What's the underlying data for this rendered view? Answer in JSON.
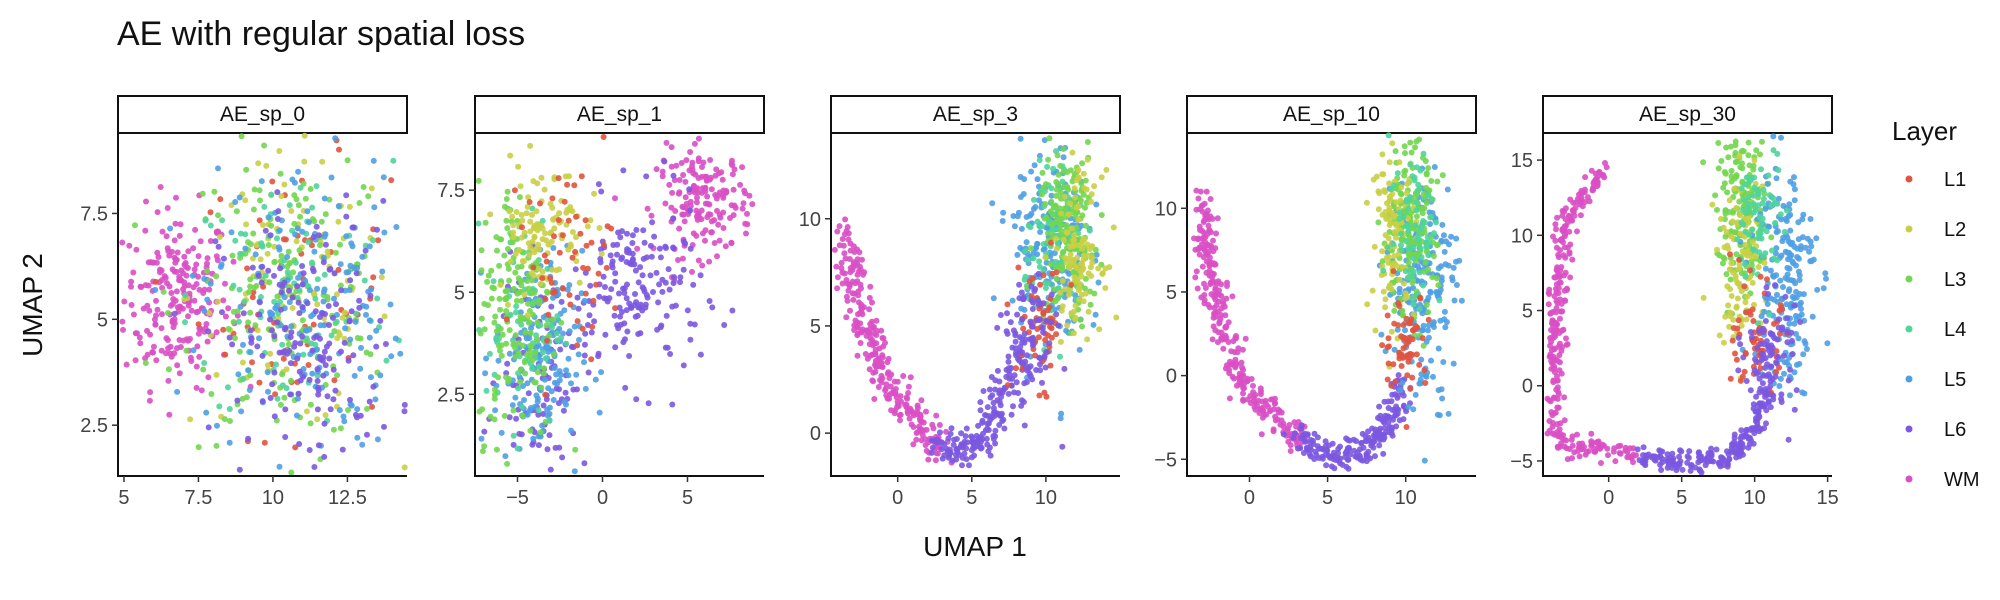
{
  "chart_data": {
    "type": "scatter",
    "title": "AE with regular spatial loss",
    "xlabel": "UMAP 1",
    "ylabel": "UMAP 2",
    "legend": {
      "title": "Layer",
      "placement": "right",
      "entries": [
        {
          "label": "L1",
          "color": "#e0533e"
        },
        {
          "label": "L2",
          "color": "#c9cf45"
        },
        {
          "label": "L3",
          "color": "#72d64f"
        },
        {
          "label": "L4",
          "color": "#4fd49a"
        },
        {
          "label": "L5",
          "color": "#4f9fe3"
        },
        {
          "label": "L6",
          "color": "#7b58e0"
        },
        {
          "label": "WM",
          "color": "#d94fc4"
        }
      ]
    },
    "panels": [
      {
        "label": "AE_sp_0",
        "xlim": [
          4.8,
          14.5
        ],
        "ylim": [
          1.3,
          9.4
        ],
        "xticks": [
          {
            "v": 5,
            "t": "5"
          },
          {
            "v": 7.5,
            "t": "7.5"
          },
          {
            "v": 10,
            "t": "10"
          },
          {
            "v": 12.5,
            "t": "12.5"
          }
        ],
        "yticks": [
          {
            "v": 2.5,
            "t": "2.5"
          },
          {
            "v": 5,
            "t": "5"
          },
          {
            "v": 7.5,
            "t": "7.5"
          }
        ],
        "clusters": [
          {
            "layer": "WM",
            "n": 220,
            "cx": 6.8,
            "cy": 5.5,
            "sx": 0.9,
            "sy": 1.05
          },
          {
            "layer": "L1",
            "n": 70,
            "cx": 10.7,
            "cy": 5.5,
            "sx": 1.6,
            "sy": 1.6
          },
          {
            "layer": "L2",
            "n": 110,
            "cx": 10.6,
            "cy": 5.6,
            "sx": 1.7,
            "sy": 1.6
          },
          {
            "layer": "L3",
            "n": 170,
            "cx": 10.5,
            "cy": 5.5,
            "sx": 1.8,
            "sy": 1.7
          },
          {
            "layer": "L4",
            "n": 100,
            "cx": 10.6,
            "cy": 5.5,
            "sx": 1.7,
            "sy": 1.6
          },
          {
            "layer": "L5",
            "n": 170,
            "cx": 11.0,
            "cy": 5.3,
            "sx": 1.7,
            "sy": 1.7
          },
          {
            "layer": "L6",
            "n": 170,
            "cx": 11.2,
            "cy": 4.5,
            "sx": 1.5,
            "sy": 1.6
          }
        ]
      },
      {
        "label": "AE_sp_1",
        "xlim": [
          -7.5,
          9.5
        ],
        "ylim": [
          0.5,
          8.9
        ],
        "xticks": [
          {
            "v": -5,
            "t": "−5"
          },
          {
            "v": 0,
            "t": "0"
          },
          {
            "v": 5,
            "t": "5"
          }
        ],
        "yticks": [
          {
            "v": 2.5,
            "t": "2.5"
          },
          {
            "v": 5,
            "t": "5"
          },
          {
            "v": 7.5,
            "t": "7.5"
          }
        ],
        "clusters": [
          {
            "layer": "WM",
            "n": 170,
            "cx": 6.0,
            "cy": 7.2,
            "sx": 1.4,
            "sy": 0.65
          },
          {
            "layer": "L6",
            "n": 170,
            "cx": 2.0,
            "cy": 5.0,
            "sx": 1.9,
            "sy": 1.1
          },
          {
            "layer": "L6",
            "n": 100,
            "cx": -3.5,
            "cy": 3.0,
            "sx": 1.3,
            "sy": 1.2
          },
          {
            "layer": "L5",
            "n": 160,
            "cx": -3.8,
            "cy": 3.4,
            "sx": 1.3,
            "sy": 1.3
          },
          {
            "layer": "L4",
            "n": 70,
            "cx": -4.6,
            "cy": 4.3,
            "sx": 1.1,
            "sy": 1.3
          },
          {
            "layer": "L3",
            "n": 170,
            "cx": -5.0,
            "cy": 4.6,
            "sx": 1.2,
            "sy": 1.6
          },
          {
            "layer": "L2",
            "n": 110,
            "cx": -3.6,
            "cy": 6.6,
            "sx": 1.3,
            "sy": 0.8
          },
          {
            "layer": "L1",
            "n": 55,
            "cx": -2.0,
            "cy": 5.8,
            "sx": 1.3,
            "sy": 1.1
          }
        ]
      },
      {
        "label": "AE_sp_3",
        "xlim": [
          -4.5,
          15.0
        ],
        "ylim": [
          -2.0,
          14.0
        ],
        "xticks": [
          {
            "v": 0,
            "t": "0"
          },
          {
            "v": 5,
            "t": "5"
          },
          {
            "v": 10,
            "t": "10"
          }
        ],
        "yticks": [
          {
            "v": 0,
            "t": "0"
          },
          {
            "v": 5,
            "t": "5"
          },
          {
            "v": 10,
            "t": "10"
          }
        ],
        "paths": [
          {
            "layer": "WM",
            "n": 260,
            "spread": 0.45,
            "pts": [
              [
                -3.5,
                9
              ],
              [
                -2.8,
                6.5
              ],
              [
                -1.5,
                3.5
              ],
              [
                0,
                1.5
              ],
              [
                1.5,
                0.2
              ],
              [
                3,
                -0.7
              ]
            ]
          },
          {
            "layer": "L6",
            "n": 160,
            "spread": 0.45,
            "pts": [
              [
                2.5,
                -0.6
              ],
              [
                4,
                -0.9
              ],
              [
                5.5,
                -0.4
              ],
              [
                7,
                1.5
              ],
              [
                8,
                3.5
              ]
            ]
          }
        ],
        "clusters": [
          {
            "layer": "L5",
            "n": 200,
            "cx": 10.2,
            "cy": 8.5,
            "sx": 1.3,
            "sy": 2.5
          },
          {
            "layer": "L4",
            "n": 90,
            "cx": 10.6,
            "cy": 9.0,
            "sx": 1.0,
            "sy": 2.0
          },
          {
            "layer": "L3",
            "n": 160,
            "cx": 11.5,
            "cy": 9.3,
            "sx": 1.0,
            "sy": 2.2
          },
          {
            "layer": "L2",
            "n": 110,
            "cx": 12.2,
            "cy": 8.5,
            "sx": 0.8,
            "sy": 1.8
          },
          {
            "layer": "L1",
            "n": 60,
            "cx": 9.6,
            "cy": 5.0,
            "sx": 0.9,
            "sy": 1.4
          },
          {
            "layer": "L6",
            "n": 90,
            "cx": 8.8,
            "cy": 4.2,
            "sx": 0.9,
            "sy": 1.6
          }
        ]
      },
      {
        "label": "AE_sp_10",
        "xlim": [
          -4.0,
          14.5
        ],
        "ylim": [
          -6.0,
          14.5
        ],
        "xticks": [
          {
            "v": 0,
            "t": "0"
          },
          {
            "v": 5,
            "t": "5"
          },
          {
            "v": 10,
            "t": "10"
          }
        ],
        "yticks": [
          {
            "v": -5,
            "t": "−5"
          },
          {
            "v": 0,
            "t": "0"
          },
          {
            "v": 5,
            "t": "5"
          },
          {
            "v": 10,
            "t": "10"
          }
        ],
        "paths": [
          {
            "layer": "WM",
            "n": 280,
            "spread": 0.4,
            "pts": [
              [
                -3,
                11
              ],
              [
                -2.7,
                6
              ],
              [
                -1.5,
                2
              ],
              [
                -0.5,
                -0.5
              ],
              [
                1.5,
                -2.5
              ],
              [
                3.5,
                -4
              ]
            ]
          },
          {
            "layer": "L6",
            "n": 200,
            "spread": 0.4,
            "pts": [
              [
                3,
                -3.8
              ],
              [
                5.5,
                -4.8
              ],
              [
                7.5,
                -4.5
              ],
              [
                9,
                -3
              ],
              [
                9.8,
                0
              ]
            ]
          }
        ],
        "clusters": [
          {
            "layer": "L5",
            "n": 210,
            "cx": 11.0,
            "cy": 5.5,
            "sx": 1.1,
            "sy": 3.6
          },
          {
            "layer": "L3",
            "n": 170,
            "cx": 10.2,
            "cy": 8.5,
            "sx": 0.9,
            "sy": 2.6
          },
          {
            "layer": "L2",
            "n": 100,
            "cx": 9.2,
            "cy": 8.5,
            "sx": 0.7,
            "sy": 2.4
          },
          {
            "layer": "L4",
            "n": 70,
            "cx": 10.6,
            "cy": 9.0,
            "sx": 0.8,
            "sy": 2.5
          },
          {
            "layer": "L1",
            "n": 60,
            "cx": 10.0,
            "cy": 2.0,
            "sx": 0.7,
            "sy": 1.5
          }
        ]
      },
      {
        "label": "AE_sp_30",
        "xlim": [
          -4.5,
          15.3
        ],
        "ylim": [
          -6.0,
          16.8
        ],
        "xticks": [
          {
            "v": 0,
            "t": "0"
          },
          {
            "v": 5,
            "t": "5"
          },
          {
            "v": 10,
            "t": "10"
          },
          {
            "v": 15,
            "t": "15"
          }
        ],
        "yticks": [
          {
            "v": -5,
            "t": "−5"
          },
          {
            "v": 0,
            "t": "0"
          },
          {
            "v": 5,
            "t": "5"
          },
          {
            "v": 10,
            "t": "10"
          },
          {
            "v": 15,
            "t": "15"
          }
        ],
        "paths": [
          {
            "layer": "WM",
            "n": 300,
            "spread": 0.32,
            "pts": [
              [
                -0.2,
                14.5
              ],
              [
                -3,
                11
              ],
              [
                -3.5,
                6
              ],
              [
                -3.7,
                0
              ],
              [
                -3.5,
                -3.8
              ],
              [
                -1,
                -4.2
              ],
              [
                2,
                -4.5
              ]
            ]
          },
          {
            "layer": "L6",
            "n": 200,
            "spread": 0.35,
            "pts": [
              [
                2,
                -4.7
              ],
              [
                5,
                -5
              ],
              [
                8,
                -5
              ],
              [
                10,
                -3
              ],
              [
                11,
                0
              ]
            ]
          }
        ],
        "clusters": [
          {
            "layer": "L3",
            "n": 170,
            "cx": 9.2,
            "cy": 11.5,
            "sx": 0.9,
            "sy": 2.8
          },
          {
            "layer": "L2",
            "n": 100,
            "cx": 9.0,
            "cy": 8.5,
            "sx": 0.8,
            "sy": 2.8
          },
          {
            "layer": "L5",
            "n": 200,
            "cx": 12.0,
            "cy": 7.5,
            "sx": 1.1,
            "sy": 4.0
          },
          {
            "layer": "L4",
            "n": 70,
            "cx": 10.5,
            "cy": 11.0,
            "sx": 0.8,
            "sy": 2.5
          },
          {
            "layer": "L1",
            "n": 60,
            "cx": 10.2,
            "cy": 3.0,
            "sx": 0.8,
            "sy": 1.8
          },
          {
            "layer": "L6",
            "n": 90,
            "cx": 11.0,
            "cy": 2.0,
            "sx": 0.9,
            "sy": 2.0
          }
        ]
      }
    ]
  }
}
